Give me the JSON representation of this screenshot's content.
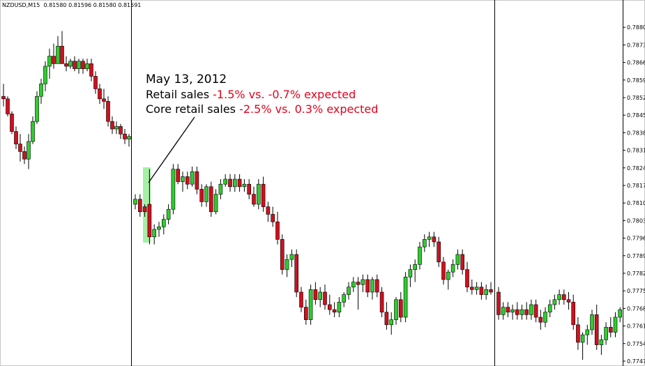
{
  "header": {
    "symbol": "NZDUSD,M15",
    "quotes": "0.81580 0.81596 0.81580 0.81591"
  },
  "annotation": {
    "date": "May 13, 2012",
    "line1_prefix": "Retail sales ",
    "line1_value": "-1.5% vs. -0.7% expected",
    "line2_prefix": "Core retail sales ",
    "line2_value": "-2.5% vs. 0.3% expected"
  },
  "colors": {
    "bull": "#2ecc2e",
    "bear": "#d0101e",
    "highlight": "#a6f0a6",
    "annotation_red": "#e8001c"
  },
  "chart_data": {
    "type": "candlestick",
    "title": "",
    "xlabel": "",
    "ylabel": "",
    "ylim": [
      0.77475,
      0.7885
    ],
    "y_ticks": [
      "0.78805",
      "0.78735",
      "0.78665",
      "0.78595",
      "0.78525",
      "0.78455",
      "0.78385",
      "0.78315",
      "0.78245",
      "0.78175",
      "0.78105",
      "0.78035",
      "0.77965",
      "0.77895",
      "0.77825",
      "0.77755",
      "0.77685",
      "0.77615",
      "0.77545",
      "0.77475"
    ],
    "series": [
      {
        "values": [
          [
            0.7853,
            0.7858,
            0.7849,
            0.7852
          ],
          [
            0.7852,
            0.7853,
            0.7845,
            0.7846
          ],
          [
            0.7846,
            0.7847,
            0.7838,
            0.7839
          ],
          [
            0.7839,
            0.7841,
            0.7832,
            0.7834
          ],
          [
            0.7834,
            0.7838,
            0.7827,
            0.7831
          ],
          [
            0.7831,
            0.7833,
            0.7826,
            0.7828
          ],
          [
            0.7828,
            0.7838,
            0.7824,
            0.7835
          ],
          [
            0.7835,
            0.7845,
            0.7834,
            0.7843
          ],
          [
            0.7843,
            0.7855,
            0.7842,
            0.7853
          ],
          [
            0.7853,
            0.786,
            0.785,
            0.7858
          ],
          [
            0.7858,
            0.7867,
            0.7855,
            0.7865
          ],
          [
            0.7865,
            0.7872,
            0.786,
            0.7869
          ],
          [
            0.7869,
            0.7874,
            0.7864,
            0.7866
          ],
          [
            0.7866,
            0.7877,
            0.7866,
            0.7873
          ],
          [
            0.7873,
            0.7879,
            0.7866,
            0.7866
          ],
          [
            0.7866,
            0.7869,
            0.7863,
            0.7865
          ],
          [
            0.7865,
            0.7868,
            0.7864,
            0.7867
          ],
          [
            0.7867,
            0.7869,
            0.7863,
            0.7864
          ],
          [
            0.7864,
            0.7868,
            0.7862,
            0.7867
          ],
          [
            0.7867,
            0.7868,
            0.7862,
            0.7864
          ],
          [
            0.7864,
            0.7868,
            0.7863,
            0.7866
          ],
          [
            0.7866,
            0.7868,
            0.7859,
            0.7861
          ],
          [
            0.7861,
            0.7863,
            0.7854,
            0.7856
          ],
          [
            0.7856,
            0.7858,
            0.785,
            0.7852
          ],
          [
            0.7852,
            0.7856,
            0.7848,
            0.7851
          ],
          [
            0.7851,
            0.7853,
            0.7841,
            0.7843
          ],
          [
            0.7843,
            0.7845,
            0.7838,
            0.784
          ],
          [
            0.784,
            0.7843,
            0.7838,
            0.7841
          ],
          [
            0.7841,
            0.7842,
            0.7836,
            0.7838
          ],
          [
            0.7838,
            0.784,
            0.7834,
            0.7836
          ],
          [
            0.7836,
            0.7838,
            0.7833,
            0.7837
          ]
        ]
      },
      {
        "values": [
          [
            0.781,
            0.7814,
            0.7808,
            0.7812
          ],
          [
            0.7812,
            0.7814,
            0.7805,
            0.7807
          ],
          [
            0.7809,
            0.781,
            0.7805,
            0.7807
          ],
          [
            0.781,
            0.7824,
            0.7794,
            0.7797
          ],
          [
            0.7797,
            0.7802,
            0.7794,
            0.78
          ],
          [
            0.78,
            0.7803,
            0.7797,
            0.7801
          ],
          [
            0.7801,
            0.7806,
            0.7798,
            0.7804
          ],
          [
            0.7804,
            0.781,
            0.7802,
            0.7808
          ],
          [
            0.7808,
            0.7826,
            0.7806,
            0.7824
          ],
          [
            0.7824,
            0.7826,
            0.7818,
            0.7819
          ],
          [
            0.7819,
            0.7823,
            0.7815,
            0.7821
          ],
          [
            0.7821,
            0.7823,
            0.7816,
            0.7818
          ],
          [
            0.7818,
            0.7825,
            0.7817,
            0.7823
          ],
          [
            0.7823,
            0.7825,
            0.7814,
            0.7816
          ],
          [
            0.7816,
            0.7818,
            0.7809,
            0.7811
          ],
          [
            0.7811,
            0.7818,
            0.7809,
            0.7817
          ],
          [
            0.7817,
            0.7819,
            0.7805,
            0.7807
          ],
          [
            0.7807,
            0.7816,
            0.7806,
            0.7814
          ],
          [
            0.7814,
            0.782,
            0.7812,
            0.7818
          ],
          [
            0.7818,
            0.7822,
            0.7817,
            0.782
          ],
          [
            0.782,
            0.7822,
            0.7815,
            0.7817
          ],
          [
            0.7817,
            0.7822,
            0.7815,
            0.782
          ],
          [
            0.782,
            0.7822,
            0.7815,
            0.7817
          ],
          [
            0.7817,
            0.782,
            0.7815,
            0.7818
          ],
          [
            0.7818,
            0.782,
            0.7812,
            0.7814
          ],
          [
            0.7814,
            0.7817,
            0.7809,
            0.781
          ],
          [
            0.781,
            0.782,
            0.7808,
            0.7818
          ],
          [
            0.7818,
            0.7821,
            0.7807,
            0.7809
          ],
          [
            0.7809,
            0.7811,
            0.7803,
            0.7806
          ],
          [
            0.7806,
            0.7809,
            0.7801,
            0.7803
          ],
          [
            0.7803,
            0.7807,
            0.7794,
            0.7796
          ],
          [
            0.7796,
            0.7798,
            0.7782,
            0.7784
          ],
          [
            0.7784,
            0.779,
            0.7781,
            0.7788
          ],
          [
            0.7788,
            0.7792,
            0.7785,
            0.779
          ],
          [
            0.779,
            0.7792,
            0.7773,
            0.7775
          ],
          [
            0.7775,
            0.7777,
            0.7767,
            0.7769
          ],
          [
            0.7769,
            0.7772,
            0.7762,
            0.7764
          ],
          [
            0.7764,
            0.7778,
            0.7762,
            0.7776
          ],
          [
            0.7776,
            0.7779,
            0.777,
            0.7772
          ],
          [
            0.7772,
            0.7777,
            0.7769,
            0.7775
          ],
          [
            0.7775,
            0.7778,
            0.7768,
            0.777
          ],
          [
            0.777,
            0.7774,
            0.7766,
            0.7768
          ],
          [
            0.7768,
            0.7771,
            0.7765,
            0.7767
          ],
          [
            0.7767,
            0.7773,
            0.7765,
            0.7771
          ],
          [
            0.7771,
            0.7775,
            0.7769,
            0.7774
          ],
          [
            0.7774,
            0.7779,
            0.7772,
            0.7777
          ],
          [
            0.7777,
            0.7781,
            0.7775,
            0.7779
          ],
          [
            0.7779,
            0.7781,
            0.7768,
            0.7778
          ],
          [
            0.7778,
            0.7782,
            0.7775,
            0.778
          ],
          [
            0.778,
            0.7782,
            0.7773,
            0.7775
          ],
          [
            0.7775,
            0.7781,
            0.7772,
            0.778
          ],
          [
            0.778,
            0.7782,
            0.7773,
            0.7775
          ],
          [
            0.7775,
            0.7777,
            0.7765,
            0.7767
          ],
          [
            0.7767,
            0.7771,
            0.776,
            0.7762
          ],
          [
            0.7762,
            0.7767,
            0.7758,
            0.7764
          ],
          [
            0.7764,
            0.7773,
            0.7762,
            0.7772
          ],
          [
            0.7772,
            0.7775,
            0.7763,
            0.7765
          ],
          [
            0.7765,
            0.7783,
            0.7763,
            0.7781
          ],
          [
            0.7781,
            0.7786,
            0.7777,
            0.7784
          ],
          [
            0.7784,
            0.7788,
            0.7779,
            0.7786
          ],
          [
            0.7786,
            0.7795,
            0.7784,
            0.7793
          ],
          [
            0.7793,
            0.7798,
            0.7791,
            0.7796
          ],
          [
            0.7796,
            0.7799,
            0.7793,
            0.7797
          ],
          [
            0.7797,
            0.7799,
            0.7793,
            0.7795
          ],
          [
            0.7795,
            0.7797,
            0.7785,
            0.7787
          ],
          [
            0.7787,
            0.7789,
            0.7778,
            0.778
          ],
          [
            0.778,
            0.7784,
            0.7776,
            0.7783
          ],
          [
            0.7783,
            0.7788,
            0.7781,
            0.7786
          ],
          [
            0.7786,
            0.7792,
            0.7784,
            0.779
          ],
          [
            0.779,
            0.7792,
            0.7782,
            0.7784
          ],
          [
            0.7784,
            0.7787,
            0.7775,
            0.7777
          ],
          [
            0.7777,
            0.778,
            0.7774,
            0.7776
          ],
          [
            0.7776,
            0.7779,
            0.7774,
            0.7777
          ],
          [
            0.7777,
            0.7779,
            0.7772,
            0.7774
          ],
          [
            0.7774,
            0.7778,
            0.7772,
            0.7776
          ],
          [
            0.7776,
            0.7779,
            0.7774,
            0.7775
          ]
        ]
      },
      {
        "values": [
          [
            0.7775,
            0.7777,
            0.7764,
            0.7766
          ],
          [
            0.7766,
            0.7771,
            0.7764,
            0.7769
          ],
          [
            0.7769,
            0.7771,
            0.7765,
            0.7767
          ],
          [
            0.7767,
            0.777,
            0.7764,
            0.7768
          ],
          [
            0.7768,
            0.7771,
            0.7764,
            0.7766
          ],
          [
            0.7766,
            0.777,
            0.7764,
            0.7768
          ],
          [
            0.7768,
            0.7771,
            0.7764,
            0.7766
          ],
          [
            0.7766,
            0.7772,
            0.7764,
            0.777
          ],
          [
            0.777,
            0.7772,
            0.7763,
            0.7765
          ],
          [
            0.7765,
            0.7768,
            0.776,
            0.7763
          ],
          [
            0.7763,
            0.7769,
            0.7761,
            0.7767
          ],
          [
            0.7767,
            0.7772,
            0.7765,
            0.777
          ],
          [
            0.777,
            0.7774,
            0.7768,
            0.7772
          ],
          [
            0.7772,
            0.7776,
            0.777,
            0.7774
          ],
          [
            0.7774,
            0.7776,
            0.777,
            0.7772
          ],
          [
            0.7772,
            0.7775,
            0.7768,
            0.7771
          ],
          [
            0.7771,
            0.7774,
            0.776,
            0.7762
          ],
          [
            0.7762,
            0.7765,
            0.7752,
            0.7755
          ],
          [
            0.7755,
            0.7759,
            0.7748,
            0.7758
          ],
          [
            0.7758,
            0.7762,
            0.7754,
            0.776
          ],
          [
            0.776,
            0.7768,
            0.7758,
            0.7766
          ],
          [
            0.7766,
            0.777,
            0.7752,
            0.7754
          ],
          [
            0.7754,
            0.7758,
            0.775,
            0.7756
          ],
          [
            0.7756,
            0.7763,
            0.7754,
            0.7761
          ],
          [
            0.7761,
            0.7765,
            0.7757,
            0.7759
          ],
          [
            0.7759,
            0.7767,
            0.7757,
            0.7765
          ],
          [
            0.7765,
            0.7769,
            0.7763,
            0.7768
          ]
        ]
      }
    ]
  }
}
